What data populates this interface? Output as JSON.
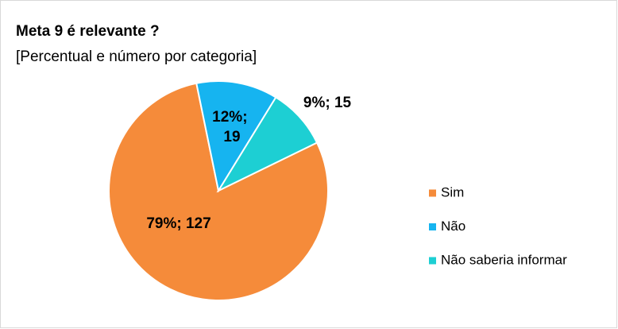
{
  "chart_data": {
    "type": "pie",
    "title": "Meta 9 é relevante ?",
    "subtitle": "[Percentual e número por categoria]",
    "categories": [
      "Sim",
      "Não",
      "Não saberia informar"
    ],
    "values": [
      79,
      12,
      9
    ],
    "value_labels": [
      "79%; 127",
      "12%; 19",
      "9%; 15"
    ],
    "colors": [
      "#f58b3a",
      "#16b4f0",
      "#1dcfd3"
    ],
    "legend": "right"
  }
}
